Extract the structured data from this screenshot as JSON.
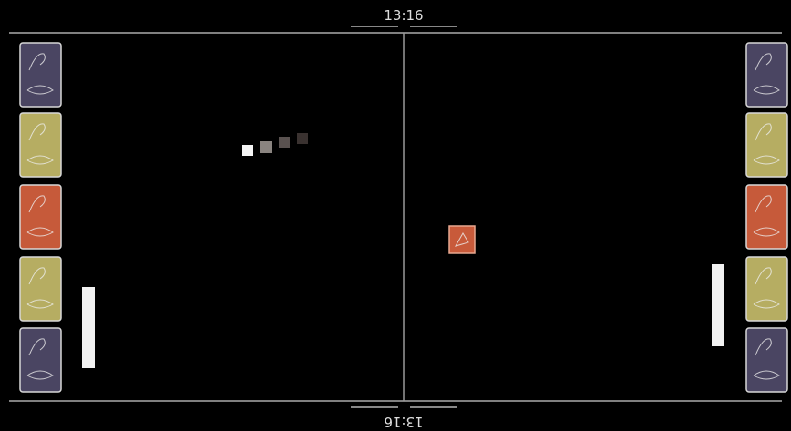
{
  "score_top": "13:16",
  "score_bottom": "13:16"
}
